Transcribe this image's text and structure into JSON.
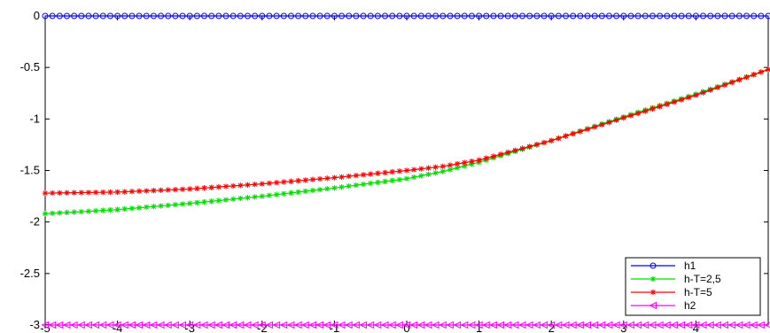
{
  "chart_data": {
    "type": "line",
    "title": "",
    "xlabel": "",
    "ylabel": "",
    "xlim": [
      -5,
      5
    ],
    "ylim": [
      -3,
      0
    ],
    "x_ticks": [
      -5,
      -4,
      -3,
      -2,
      -1,
      0,
      1,
      2,
      3,
      4
    ],
    "x_tick_labels": [
      "-5",
      "-4",
      "-3",
      "-2",
      "-1",
      "0",
      "1",
      "2",
      "3",
      "4"
    ],
    "y_ticks": [
      0,
      -0.5,
      -1,
      -1.5,
      -2,
      -2.5,
      -3
    ],
    "y_tick_labels": [
      "0",
      "-0.5",
      "-1",
      "-1.5",
      "-2",
      "-2.5",
      "-3"
    ],
    "grid": false,
    "legend_position": "bottom-right",
    "series": [
      {
        "name": "h1",
        "color": "#0000ff",
        "marker": "circle",
        "x": [
          -5,
          5
        ],
        "y": [
          0,
          0
        ]
      },
      {
        "name": "h-T=2,5",
        "color": "#00dd00",
        "marker": "star",
        "x": [
          -5,
          -4,
          -3,
          -2,
          -1,
          0,
          0.5,
          1,
          2,
          3,
          4,
          5
        ],
        "y": [
          -1.92,
          -1.88,
          -1.82,
          -1.75,
          -1.67,
          -1.58,
          -1.51,
          -1.42,
          -1.21,
          -0.98,
          -0.76,
          -0.52
        ]
      },
      {
        "name": "h-T=5",
        "color": "#ff0000",
        "marker": "star",
        "x": [
          -5,
          -4,
          -3,
          -2,
          -1,
          0,
          0.5,
          1,
          2,
          3,
          4,
          5
        ],
        "y": [
          -1.72,
          -1.71,
          -1.68,
          -1.63,
          -1.57,
          -1.5,
          -1.46,
          -1.4,
          -1.21,
          -0.99,
          -0.77,
          -0.52
        ]
      },
      {
        "name": "h2",
        "color": "#ff00ff",
        "marker": "triangle-left",
        "x": [
          -5,
          5
        ],
        "y": [
          -3,
          -3
        ]
      }
    ]
  }
}
